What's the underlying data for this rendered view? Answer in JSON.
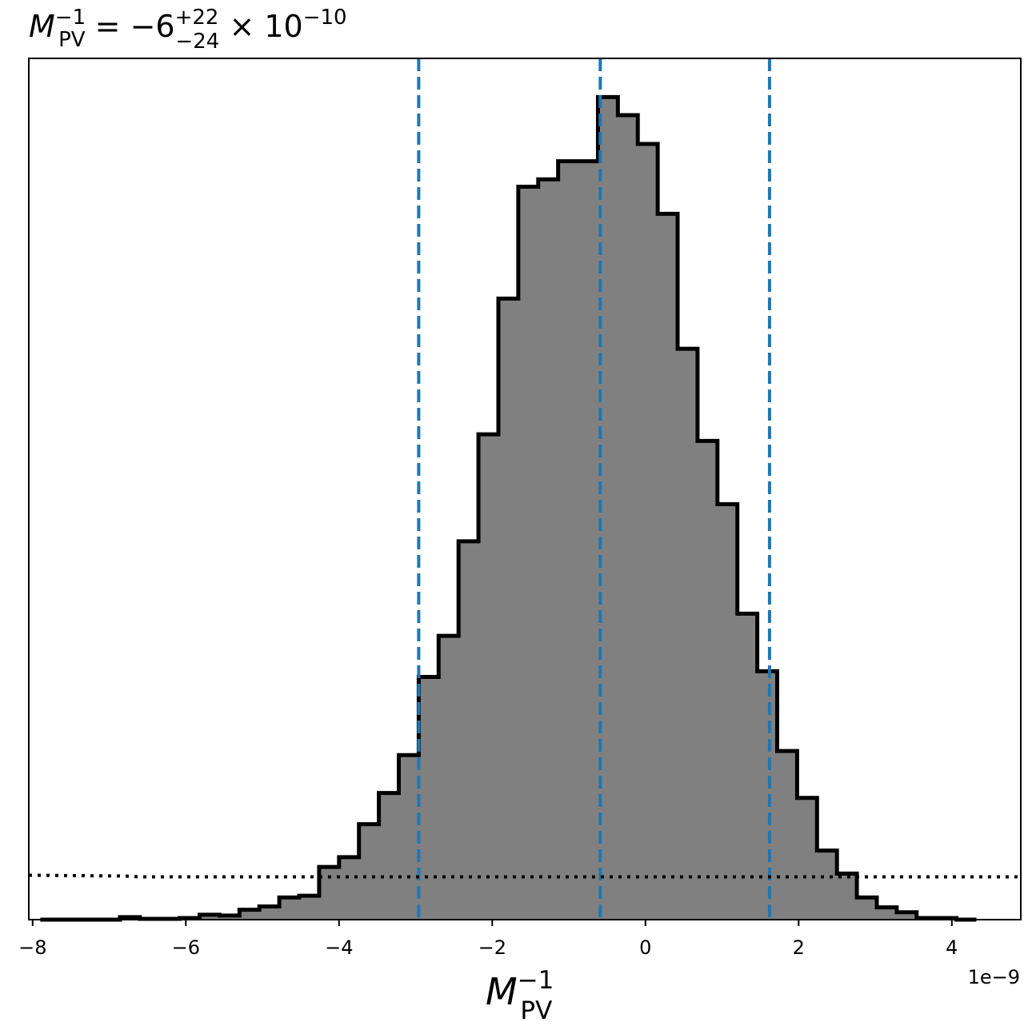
{
  "chart_data": {
    "type": "histogram",
    "title": {
      "symbol": "M",
      "sup": "−1",
      "sub": "PV",
      "equals": " = −6",
      "err_plus": "+22",
      "err_minus": "−24",
      "times": " × 10",
      "exp": "−10"
    },
    "xlabel": {
      "symbol": "M",
      "sup": "−1",
      "sub": "PV"
    },
    "ylabel": "",
    "x_offset_label": "1e−9",
    "xlim": [
      -8.05,
      4.9
    ],
    "ylim": [
      0,
      1.047
    ],
    "x_ticks": [
      {
        "value": -8,
        "label": "−8"
      },
      {
        "value": -6,
        "label": "−6"
      },
      {
        "value": -4,
        "label": "−4"
      },
      {
        "value": -2,
        "label": "−2"
      },
      {
        "value": 0,
        "label": "0"
      },
      {
        "value": 2,
        "label": "2"
      },
      {
        "value": 4,
        "label": "4"
      }
    ],
    "y_ticks_visible": false,
    "grid": false,
    "bin_edges": [
      -7.9,
      -7.64,
      -7.38,
      -7.12,
      -6.86,
      -6.6,
      -6.34,
      -6.08,
      -5.82,
      -5.56,
      -5.3,
      -5.04,
      -4.78,
      -4.52,
      -4.26,
      -4.0,
      -3.74,
      -3.48,
      -3.22,
      -2.96,
      -2.7,
      -2.44,
      -2.18,
      -1.92,
      -1.66,
      -1.4,
      -1.14,
      -0.88,
      -0.62,
      -0.36,
      -0.1,
      0.16,
      0.42,
      0.68,
      0.94,
      1.2,
      1.46,
      1.72,
      1.98,
      2.24,
      2.5,
      2.76,
      3.02,
      3.28,
      3.54,
      3.8,
      4.06,
      4.32
    ],
    "counts": [
      0.0,
      0.0,
      0.0,
      0.0,
      0.003,
      0.001,
      0.001,
      0.002,
      0.006,
      0.005,
      0.012,
      0.016,
      0.027,
      0.029,
      0.064,
      0.076,
      0.116,
      0.154,
      0.2,
      0.295,
      0.345,
      0.46,
      0.59,
      0.755,
      0.891,
      0.9,
      0.922,
      0.922,
      1.0,
      0.978,
      0.943,
      0.858,
      0.694,
      0.582,
      0.505,
      0.372,
      0.302,
      0.205,
      0.148,
      0.084,
      0.056,
      0.027,
      0.015,
      0.009,
      0.002,
      0.002,
      0.0
    ],
    "vlines": [
      {
        "value": -2.96,
        "style": "dashed",
        "color": "#1f77b4"
      },
      {
        "value": -0.59,
        "style": "dashed",
        "color": "#1f77b4"
      },
      {
        "value": 1.62,
        "style": "dashed",
        "color": "#1f77b4"
      }
    ],
    "prior_line": {
      "style": "dotted",
      "color": "#000000",
      "x": [
        -8.05,
        -6.8,
        -6.6,
        4.9
      ],
      "y": [
        0.054,
        0.053,
        0.052,
        0.052
      ]
    },
    "colors": {
      "fill": "#808080",
      "edge": "#000000",
      "vline": "#1f77b4"
    }
  }
}
